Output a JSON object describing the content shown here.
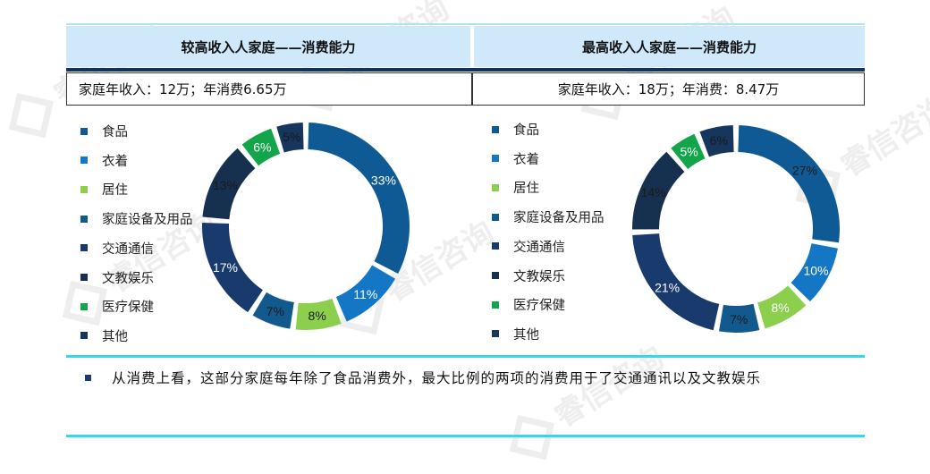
{
  "headers": {
    "left_title": "较高收入人家庭——消费能力",
    "right_title": "最高收入人家庭——消费能力",
    "left_sub": "家庭年收入：12万；年消费6.65万",
    "right_sub": "家庭年收入：18万；年消费：8.47万"
  },
  "legend": [
    "食品",
    "衣着",
    "居住",
    "家庭设备及用品",
    "交通通信",
    "文教娱乐",
    "医疗保健",
    "其他"
  ],
  "colors": [
    "#0f5a94",
    "#1477c5",
    "#8ccf4d",
    "#125a8e",
    "#183a6c",
    "#16304f",
    "#12a54a",
    "#16365e"
  ],
  "chart_data": [
    {
      "type": "pie",
      "title": "较高收入人家庭——消费能力",
      "categories": [
        "食品",
        "衣着",
        "居住",
        "家庭设备及用品",
        "交通通信",
        "文教娱乐",
        "医疗保健",
        "其他"
      ],
      "values": [
        33,
        11,
        8,
        7,
        17,
        13,
        6,
        5
      ],
      "labels": [
        "33%",
        "11%",
        "8%",
        "7%",
        "17%",
        "13%",
        "6%",
        "5%"
      ],
      "donut": true,
      "legend_position": "left"
    },
    {
      "type": "pie",
      "title": "最高收入人家庭——消费能力",
      "categories": [
        "食品",
        "衣着",
        "居住",
        "家庭设备及用品",
        "交通通信",
        "文教娱乐",
        "医疗保健",
        "其他"
      ],
      "values": [
        27,
        10,
        8,
        7,
        21,
        14,
        5,
        6
      ],
      "labels": [
        "27%",
        "10%",
        "8%",
        "7%",
        "21%",
        "14%",
        "5%",
        "6%"
      ],
      "donut": true,
      "legend_position": "left"
    }
  ],
  "note": "从消费上看，这部分家庭每年除了食品消费外，最大比例的两项的消费用于了交通通讯以及文教娱乐",
  "watermark": "睿信咨询"
}
